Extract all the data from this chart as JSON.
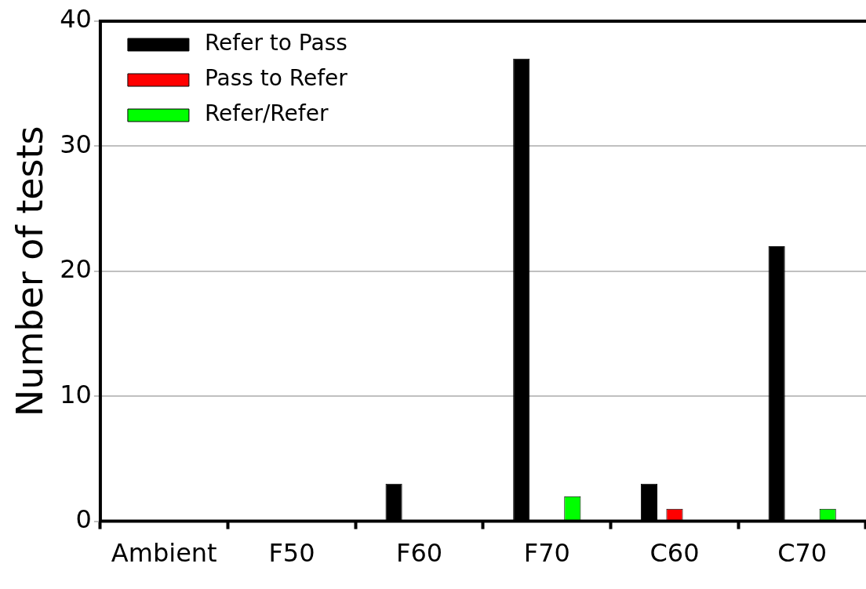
{
  "chart_data": {
    "type": "bar",
    "ylabel": "Number of tests",
    "categories": [
      "Ambient",
      "F50",
      "F60",
      "F70",
      "C60",
      "C70"
    ],
    "series": [
      {
        "name": "Refer to Pass",
        "color": "#000000",
        "values": [
          0,
          0,
          3,
          37,
          3,
          22
        ]
      },
      {
        "name": "Pass to Refer",
        "color": "#ff0000",
        "values": [
          0,
          0,
          0,
          0,
          1,
          0
        ]
      },
      {
        "name": "Refer/Refer",
        "color": "#00ff00",
        "values": [
          0,
          0,
          0,
          2,
          0,
          1
        ]
      }
    ],
    "ylim": [
      0,
      40
    ],
    "yticks": [
      0,
      10,
      20,
      30,
      40
    ],
    "grid": "y",
    "legend": "top left"
  }
}
